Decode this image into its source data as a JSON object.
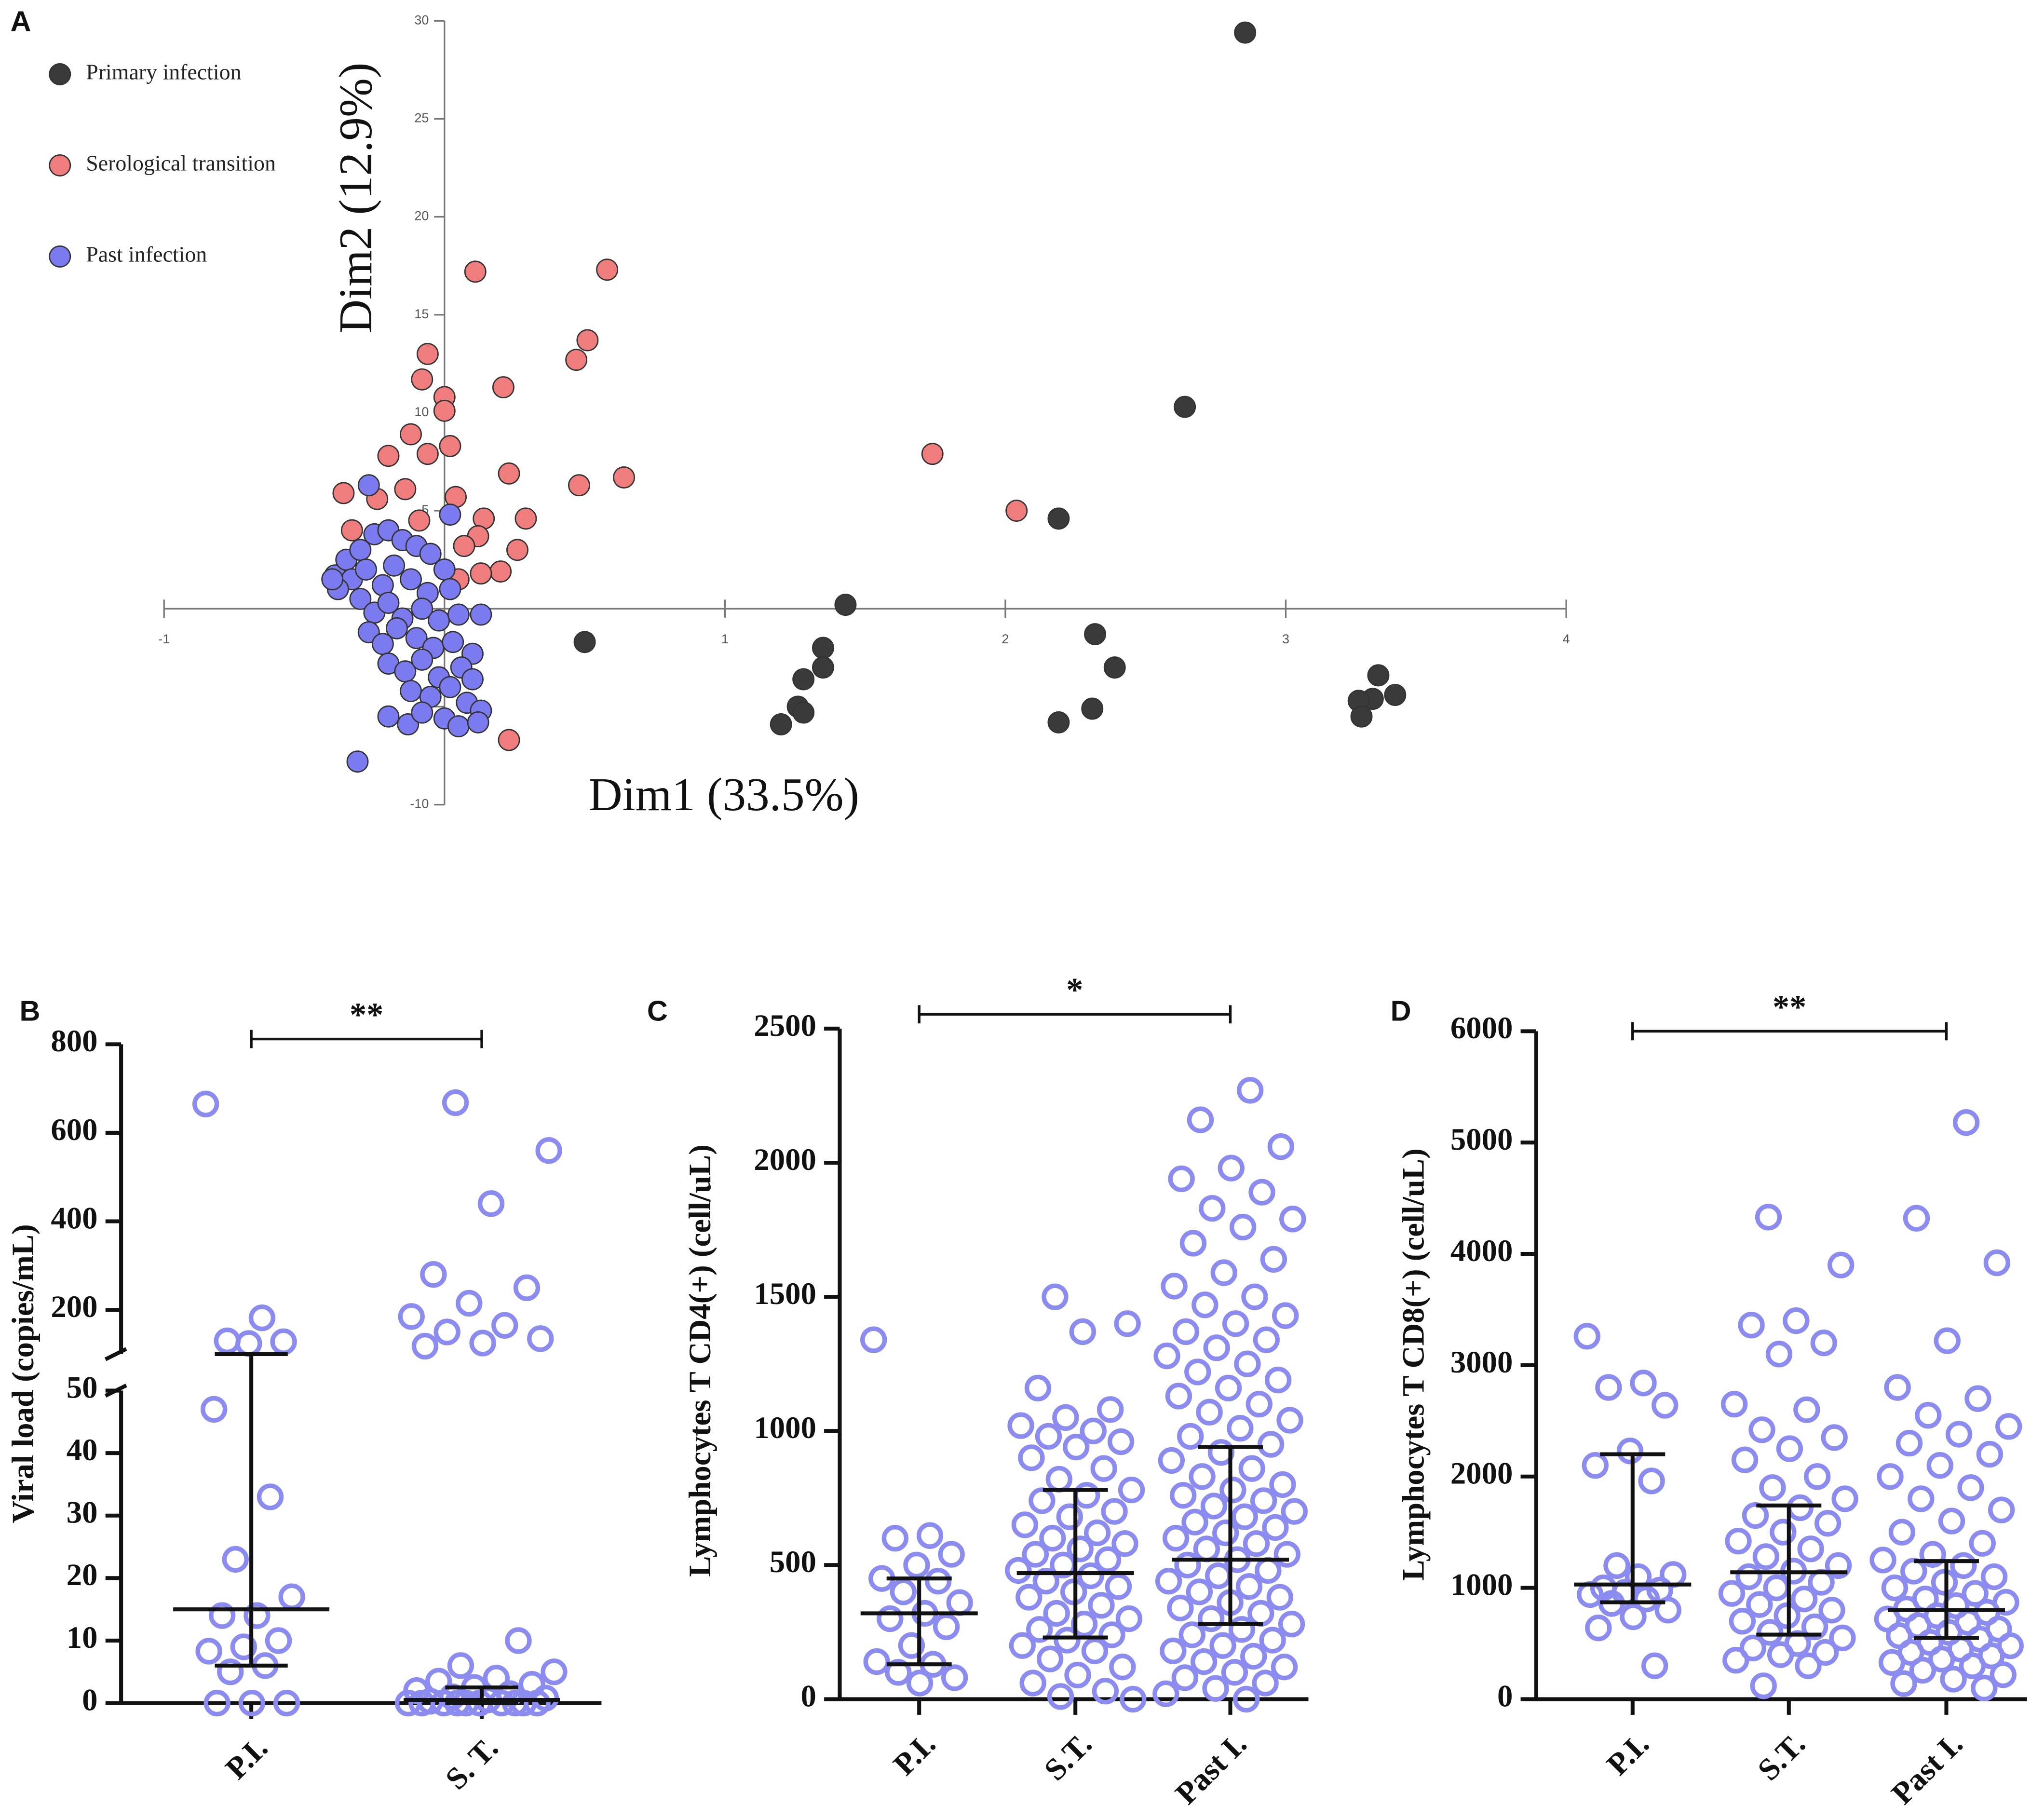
{
  "chart_data": [
    {
      "type": "scatter",
      "label": "A",
      "xlabel": "Dim1 (33.5%)",
      "ylabel": "Dim2 (12.9%)",
      "xlim": [
        -1,
        4
      ],
      "ylim": [
        -10,
        30
      ],
      "xticks": [
        -1,
        1,
        2,
        3,
        4
      ],
      "yticks": [
        -10,
        -5,
        5,
        10,
        15,
        20,
        25,
        30
      ],
      "series": [
        {
          "name": "Primary infection",
          "color": "#3a3a3a",
          "x": [
            2.855,
            2.64,
            2.19,
            1.43,
            0.5,
            1.35,
            1.35,
            1.28,
            1.26,
            1.28,
            1.2,
            2.32,
            2.39,
            2.31,
            2.19,
            3.33,
            3.39,
            3.31,
            3.26,
            3.27
          ],
          "values": [
            29.4,
            10.3,
            4.6,
            0.2,
            -1.7,
            -2.0,
            -3.0,
            -3.6,
            -5.0,
            -5.3,
            -5.9,
            -1.3,
            -3.0,
            -5.1,
            -5.8,
            -3.4,
            -4.4,
            -4.6,
            -4.7,
            -5.5
          ]
        },
        {
          "name": "Serological transition",
          "color": "#ef7d7d",
          "x": [
            0.58,
            0.11,
            0.51,
            0.47,
            -0.06,
            -0.08,
            0.21,
            0,
            0,
            -0.12,
            -0.06,
            -0.2,
            0.02,
            0.23,
            0.64,
            0.48,
            -0.36,
            0.04,
            1.74,
            2.04,
            0.29,
            0.14,
            0.12,
            0.26,
            0.2,
            0.13,
            0.05,
            0.23,
            -0.14,
            -0.24,
            -0.33,
            0.07,
            -0.09
          ],
          "values": [
            17.3,
            17.2,
            13.7,
            12.7,
            13.0,
            11.7,
            11.3,
            10.8,
            10.1,
            8.9,
            7.9,
            7.8,
            8.3,
            6.9,
            6.7,
            6.3,
            5.9,
            5.7,
            7.9,
            5.0,
            4.6,
            4.6,
            3.7,
            3.0,
            1.9,
            1.8,
            1.5,
            -6.7,
            6.1,
            5.6,
            4.0,
            3.2,
            4.5
          ]
        },
        {
          "name": "Past infection",
          "color": "#7b7bef",
          "x": [
            -0.27,
            -0.31,
            -0.2,
            -0.13,
            0.02,
            0.13,
            0.1,
            -0.39,
            -0.35,
            -0.3,
            -0.25,
            -0.2,
            -0.15,
            -0.1,
            -0.05,
            0,
            -0.33,
            -0.28,
            -0.22,
            -0.18,
            -0.12,
            -0.06,
            0.02,
            -0.3,
            -0.25,
            -0.2,
            -0.15,
            -0.08,
            -0.02,
            0.05,
            -0.27,
            -0.22,
            -0.17,
            -0.1,
            -0.04,
            0.03,
            -0.2,
            -0.14,
            -0.08,
            -0.02,
            0.06,
            0.1,
            -0.12,
            -0.05,
            0.02,
            0.08,
            0.13,
            -0.08,
            0,
            0.05,
            0.12,
            -0.38,
            -0.4
          ],
          "values": [
            6.3,
            -7.8,
            -5.5,
            -5.9,
            4.8,
            -0.3,
            -2.3,
            1.7,
            2.5,
            3.0,
            3.8,
            4.0,
            3.5,
            3.2,
            2.8,
            2.0,
            1.5,
            2.0,
            1.2,
            2.2,
            1.5,
            0.8,
            1.0,
            0.5,
            -0.2,
            0.3,
            -0.5,
            0.0,
            -0.6,
            -0.3,
            -1.2,
            -1.8,
            -1.0,
            -1.5,
            -2.0,
            -1.7,
            -2.8,
            -3.2,
            -2.6,
            -3.5,
            -3.0,
            -3.6,
            -4.2,
            -4.5,
            -4.0,
            -4.8,
            -5.2,
            -5.3,
            -5.6,
            -6.0,
            -5.8,
            1.0,
            1.5
          ]
        }
      ]
    },
    {
      "type": "dot_plot",
      "label": "B",
      "ylabel": "Viral load (copies/mL)",
      "color": "#8c8cf0",
      "ylim": [
        0,
        800
      ],
      "axis_break": [
        50,
        100
      ],
      "yticks": [
        0,
        10,
        20,
        30,
        40,
        50,
        200,
        400,
        600,
        800
      ],
      "categories": [
        "P.I.",
        "S. T."
      ],
      "groups": [
        {
          "values": [
            665,
            182,
            130,
            128,
            124,
            47,
            33,
            23,
            17,
            14,
            14,
            10,
            9,
            8.3,
            6,
            5,
            0,
            0,
            0
          ],
          "median": 15,
          "q1": 6,
          "q3": 100
        },
        {
          "values": [
            668,
            560,
            440,
            280,
            250,
            215,
            185,
            165,
            150,
            135,
            125,
            118,
            10,
            6,
            5,
            4,
            3.5,
            3,
            2.5,
            2,
            1.5,
            1,
            0.8,
            0.5,
            0.3,
            0,
            0,
            0,
            0,
            0,
            0,
            0,
            0,
            0,
            0
          ],
          "median": 0.5,
          "q1": 0,
          "q3": 2.5
        }
      ],
      "significance": {
        "label": "**",
        "between": [
          "P.I.",
          "S. T."
        ]
      }
    },
    {
      "type": "dot_plot",
      "label": "C",
      "ylabel": "Lymphocytes T CD4(+) (cell/uL)",
      "color": "#8c8cf0",
      "ylim": [
        0,
        2500
      ],
      "yticks": [
        0,
        500,
        1000,
        1500,
        2000,
        2500
      ],
      "categories": [
        "P.I.",
        "S.T.",
        "Past I."
      ],
      "groups": [
        {
          "values": [
            1340,
            610,
            600,
            540,
            500,
            450,
            440,
            400,
            360,
            320,
            300,
            270,
            200,
            140,
            130,
            100,
            80,
            60
          ],
          "median": 320,
          "q1": 130,
          "q3": 450
        },
        {
          "values": [
            1500,
            1400,
            1370,
            1160,
            1080,
            1050,
            1020,
            1000,
            980,
            960,
            940,
            900,
            860,
            820,
            780,
            760,
            740,
            700,
            680,
            650,
            620,
            600,
            580,
            560,
            540,
            520,
            500,
            480,
            460,
            440,
            420,
            400,
            380,
            350,
            320,
            300,
            280,
            260,
            240,
            220,
            200,
            180,
            150,
            120,
            90,
            60,
            30,
            10,
            0
          ],
          "median": 470,
          "q1": 230,
          "q3": 780
        },
        {
          "values": [
            2270,
            2160,
            2060,
            1980,
            1940,
            1890,
            1830,
            1790,
            1760,
            1700,
            1640,
            1590,
            1540,
            1500,
            1470,
            1430,
            1400,
            1370,
            1340,
            1310,
            1280,
            1250,
            1220,
            1190,
            1160,
            1130,
            1100,
            1070,
            1040,
            1010,
            980,
            950,
            920,
            890,
            860,
            830,
            800,
            780,
            760,
            740,
            720,
            700,
            680,
            660,
            640,
            620,
            600,
            580,
            560,
            540,
            520,
            500,
            480,
            460,
            440,
            420,
            400,
            380,
            360,
            340,
            320,
            300,
            280,
            260,
            240,
            220,
            200,
            180,
            160,
            140,
            120,
            100,
            80,
            60,
            40,
            20,
            0
          ],
          "median": 520,
          "q1": 280,
          "q3": 940
        }
      ],
      "significance": {
        "label": "*",
        "between": [
          "P.I.",
          "Past I."
        ]
      }
    },
    {
      "type": "dot_plot",
      "label": "D",
      "ylabel": "Lymphocytes T CD8(+) (cell/uL)",
      "color": "#8c8cf0",
      "ylim": [
        0,
        6000
      ],
      "yticks": [
        0,
        1000,
        2000,
        3000,
        4000,
        5000,
        6000
      ],
      "categories": [
        "P.I.",
        "S.T.",
        "Past I."
      ],
      "groups": [
        {
          "values": [
            3260,
            2840,
            2800,
            2640,
            2230,
            2100,
            1960,
            1200,
            1120,
            1100,
            1000,
            980,
            960,
            940,
            900,
            860,
            800,
            740,
            640,
            300
          ],
          "median": 1030,
          "q1": 870,
          "q3": 2200
        },
        {
          "values": [
            4330,
            3900,
            3400,
            3360,
            3200,
            3100,
            2650,
            2600,
            2420,
            2350,
            2250,
            2150,
            2000,
            1900,
            1800,
            1720,
            1650,
            1580,
            1500,
            1420,
            1350,
            1280,
            1200,
            1150,
            1100,
            1050,
            1000,
            950,
            900,
            850,
            800,
            750,
            700,
            650,
            600,
            550,
            500,
            460,
            420,
            400,
            350,
            300,
            120
          ],
          "median": 1140,
          "q1": 580,
          "q3": 1740
        },
        {
          "values": [
            5180,
            4320,
            3920,
            3220,
            2800,
            2700,
            2550,
            2450,
            2380,
            2300,
            2200,
            2100,
            2000,
            1900,
            1800,
            1700,
            1600,
            1500,
            1400,
            1300,
            1250,
            1200,
            1150,
            1100,
            1050,
            1000,
            950,
            900,
            870,
            840,
            810,
            780,
            750,
            720,
            690,
            660,
            630,
            600,
            570,
            540,
            510,
            480,
            450,
            420,
            390,
            360,
            330,
            300,
            260,
            220,
            180,
            140,
            100
          ],
          "median": 800,
          "q1": 550,
          "q3": 1240
        }
      ],
      "significance": {
        "label": "**",
        "between": [
          "P.I.",
          "Past I."
        ]
      }
    }
  ]
}
